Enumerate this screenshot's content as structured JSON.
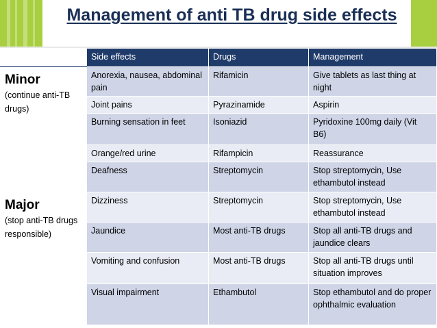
{
  "title": "Management of anti TB drug side effects",
  "colors": {
    "header": "#1f3b6a",
    "row_dark": "#cfd5e7",
    "row_light": "#e9ecf4",
    "accent_green": "#a8cf3f",
    "title": "#1a2f56"
  },
  "table": {
    "headers": [
      "Side effects",
      "Drugs",
      "Management"
    ],
    "groups": [
      {
        "label": "Minor",
        "note": "(continue anti-TB drugs)",
        "rows": [
          [
            "Anorexia, nausea, abdominal pain",
            "Rifamicin",
            "Give tablets as last thing at night"
          ],
          [
            "Joint pains",
            "Pyrazinamide",
            "Aspirin"
          ],
          [
            "Burning sensation in feet",
            "Isoniazid",
            "Pyridoxine 100mg daily (Vit B6)"
          ],
          [
            "Orange/red urine",
            "Rifampicin",
            "Reassurance"
          ],
          [
            "Deafness",
            "Streptomycin",
            "Stop streptomycin, Use ethambutol instead"
          ]
        ]
      },
      {
        "label": "Major",
        "note": "(stop anti-TB drugs responsible)",
        "rows": [
          [
            "Dizziness",
            "Streptomycin",
            "Stop streptomycin, Use ethambutol instead"
          ],
          [
            "Jaundice",
            "Most anti-TB drugs",
            "Stop all anti-TB drugs and jaundice clears"
          ],
          [
            "Vomiting and confusion",
            "Most anti-TB drugs",
            "Stop all anti-TB drugs until situation improves"
          ],
          [
            "Visual impairment",
            "Ethambutol",
            "Stop ethambutol and do proper ophthalmic evaluation"
          ]
        ]
      }
    ]
  }
}
